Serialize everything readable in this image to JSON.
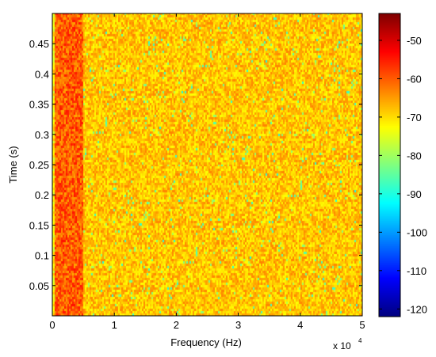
{
  "chart_data": {
    "type": "heatmap",
    "title": "",
    "xlabel": "Frequency (Hz)",
    "ylabel": "Time (s)",
    "x_exponent_label": "x 10",
    "x_exponent": "4",
    "xlim": [
      0,
      50000
    ],
    "ylim": [
      0,
      0.5
    ],
    "x_ticks": [
      0,
      10000,
      20000,
      30000,
      40000,
      50000
    ],
    "x_tick_labels": [
      "0",
      "1",
      "2",
      "3",
      "4",
      "5"
    ],
    "y_ticks": [
      0.05,
      0.1,
      0.15,
      0.2,
      0.25,
      0.3,
      0.35,
      0.4,
      0.45
    ],
    "y_tick_labels": [
      "0.05",
      "0.1",
      "0.15",
      "0.2",
      "0.25",
      "0.3",
      "0.35",
      "0.4",
      "0.45"
    ],
    "colorbar": {
      "colormap": "jet",
      "clim": [
        -122,
        -43
      ],
      "ticks": [
        -50,
        -60,
        -70,
        -80,
        -90,
        -100,
        -110,
        -120
      ],
      "tick_labels": [
        "-50",
        "-60",
        "-70",
        "-80",
        "-90",
        "-100",
        "-110",
        "-120"
      ]
    },
    "values_description": "Power ~-55 to -60 dB in 0-5 kHz band, ~-65 to -72 dB elsewhere with sparse dips to ~-85 dB",
    "low_band": {
      "x_range": [
        0,
        5000
      ],
      "mean_db": -60
    },
    "background_mean_db": -68
  },
  "colors": {
    "axis": "#000000",
    "background": "#ffffff"
  }
}
